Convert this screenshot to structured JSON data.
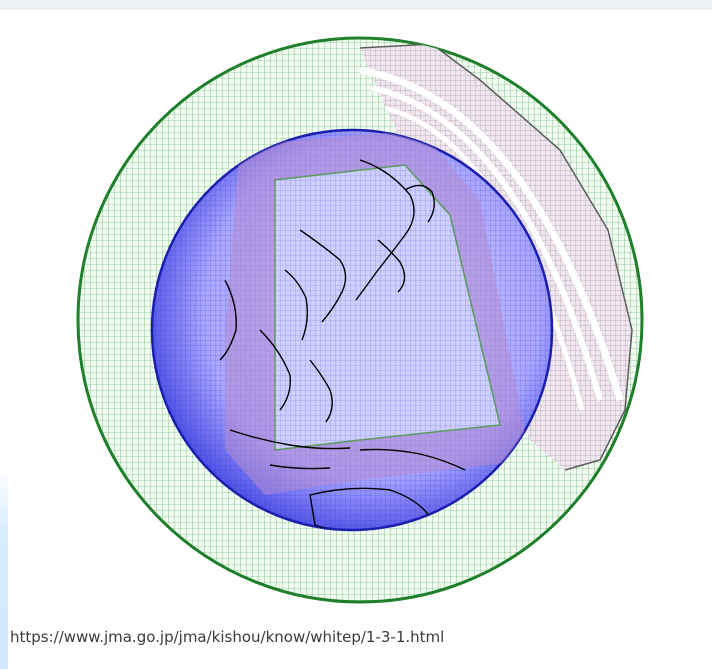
{
  "figure": {
    "image_alt": "",
    "colors": {
      "outer_grid": "#2e9b3a",
      "inner_grid": "#2a2fd6",
      "band": "#b38ad0",
      "inner_fill": "#c9c6ff",
      "section_fill": "#efe6f0",
      "section_line": "#6b6b6b",
      "coastline": "#000000"
    }
  },
  "caption": {
    "url_text": "https://www.jma.go.jp/jma/kishou/know/whitep/1-3-1.html"
  }
}
